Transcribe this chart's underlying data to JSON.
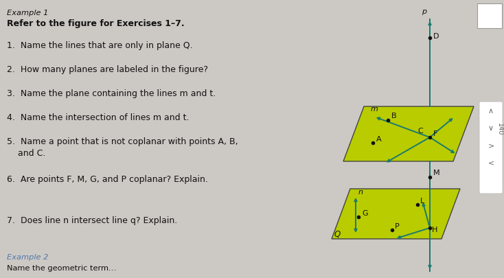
{
  "bg_color": "#ccc9c4",
  "plane_color": "#b8cc00",
  "plane_edge_color": "#444444",
  "text_color": "#111111",
  "line_color": "#1a7a6e",
  "title": "Example 1",
  "subtitle": "Refer to the figure for Exercises 1–7.",
  "q1": "1.  Name the lines that are only in plane Q.",
  "q2": "2.  How many planes are labeled in the figure?",
  "q3": "3.  Name the plane containing the lines m and t.",
  "q4": "4.  Name the intersection of lines m and t.",
  "q5a": "5.  Name a point that is not coplanar with points A, B,",
  "q5b": "    and C.",
  "q6": "6.  Are points F, M, G, and P coplanar? Explain.",
  "q7": "7.  Does line n intersect line q? Explain.",
  "footer1": "Example 2",
  "footer2": "Name the geometric term…",
  "right_nav": [
    "∧",
    "∨",
    ">",
    "<"
  ],
  "side_text": "140"
}
